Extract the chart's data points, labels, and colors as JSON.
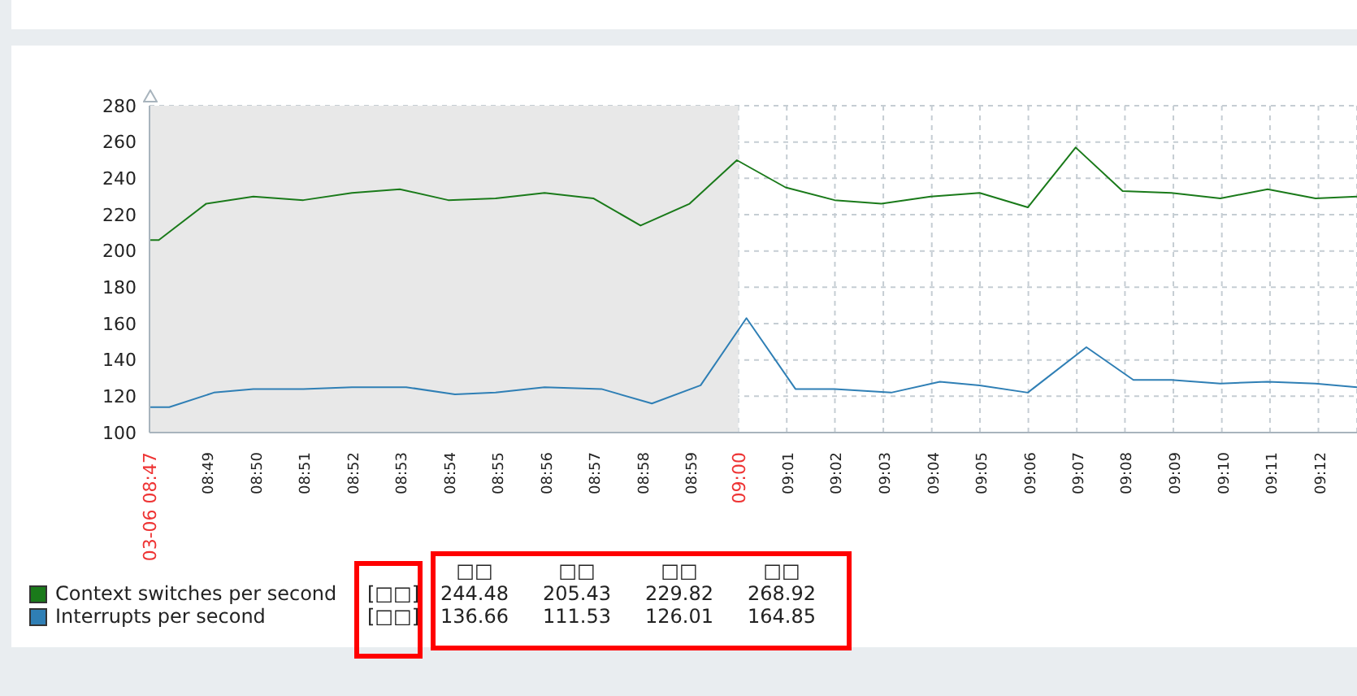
{
  "chart_data": {
    "type": "line",
    "xlim": [
      8.797,
      9.2133
    ],
    "ylim": [
      100,
      280
    ],
    "yticks": [
      100,
      120,
      140,
      160,
      180,
      200,
      220,
      240,
      260,
      280
    ],
    "xticks": [
      {
        "value": 8.797,
        "label": "03-06 08:47"
      },
      {
        "value": 8.8167,
        "label": "08:49"
      },
      {
        "value": 8.8333,
        "label": "08:50"
      },
      {
        "value": 8.85,
        "label": "08:51"
      },
      {
        "value": 8.8667,
        "label": "08:52"
      },
      {
        "value": 8.8833,
        "label": "08:53"
      },
      {
        "value": 8.9,
        "label": "08:54"
      },
      {
        "value": 8.9167,
        "label": "08:55"
      },
      {
        "value": 8.9333,
        "label": "08:56"
      },
      {
        "value": 8.95,
        "label": "08:57"
      },
      {
        "value": 8.9667,
        "label": "08:58"
      },
      {
        "value": 8.9833,
        "label": "08:59"
      },
      {
        "value": 9.0,
        "label": "09:00"
      },
      {
        "value": 9.0167,
        "label": "09:01"
      },
      {
        "value": 9.0333,
        "label": "09:02"
      },
      {
        "value": 9.05,
        "label": "09:03"
      },
      {
        "value": 9.0667,
        "label": "09:04"
      },
      {
        "value": 9.0833,
        "label": "09:05"
      },
      {
        "value": 9.1,
        "label": "09:06"
      },
      {
        "value": 9.1167,
        "label": "09:07"
      },
      {
        "value": 9.1333,
        "label": "09:08"
      },
      {
        "value": 9.15,
        "label": "09:09"
      },
      {
        "value": 9.1667,
        "label": "09:10"
      },
      {
        "value": 9.1833,
        "label": "09:11"
      },
      {
        "value": 9.2,
        "label": "09:12"
      }
    ],
    "grid": true,
    "legend": "bottom left",
    "marker": "none",
    "line_style": "solid",
    "bands": [
      {
        "axis": "x",
        "from": 8.797,
        "to": 9.0,
        "color": "#e8e8e8"
      }
    ],
    "series": [
      {
        "name": "Context switches per second",
        "color": "#1a7a1a",
        "x": [
          8.7973,
          8.8002,
          8.8165,
          8.8328,
          8.85,
          8.8668,
          8.8833,
          8.9,
          8.9163,
          8.9332,
          8.95,
          8.9663,
          8.9832,
          8.9995,
          9.0163,
          9.0332,
          9.0493,
          9.0663,
          9.0832,
          9.0998,
          9.1163,
          9.1325,
          9.1493,
          9.1662,
          9.1825,
          9.199,
          9.2133
        ],
        "values": [
          206,
          206,
          226,
          230,
          228,
          232,
          234,
          228,
          229,
          232,
          229,
          214,
          226,
          250,
          235,
          228,
          226,
          230,
          232,
          224,
          257,
          233,
          232,
          229,
          234,
          229,
          230
        ]
      },
      {
        "name": "Interrupts per second",
        "color": "#2f7fb5",
        "x": [
          8.7973,
          8.8038,
          8.8192,
          8.8328,
          8.85,
          8.8668,
          8.8855,
          8.9023,
          8.9163,
          8.9332,
          8.9528,
          8.9702,
          8.987,
          9.0028,
          9.0197,
          9.0332,
          9.0527,
          9.0695,
          9.0832,
          9.0998,
          9.12,
          9.1362,
          9.1493,
          9.1662,
          9.1825,
          9.199,
          9.2133
        ],
        "values": [
          114,
          114,
          122,
          124,
          124,
          125,
          125,
          121,
          122,
          125,
          124,
          116,
          126,
          163,
          124,
          124,
          122,
          128,
          126,
          122,
          147,
          129,
          129,
          127,
          128,
          127,
          125
        ]
      }
    ],
    "annotations": [
      "□□",
      "□□",
      "□□",
      "□□",
      "[□□]",
      "244.48",
      "205.43",
      "229.82",
      "268.92",
      "[□□]",
      "136.66",
      "111.53",
      "126.01",
      "164.85"
    ]
  }
}
